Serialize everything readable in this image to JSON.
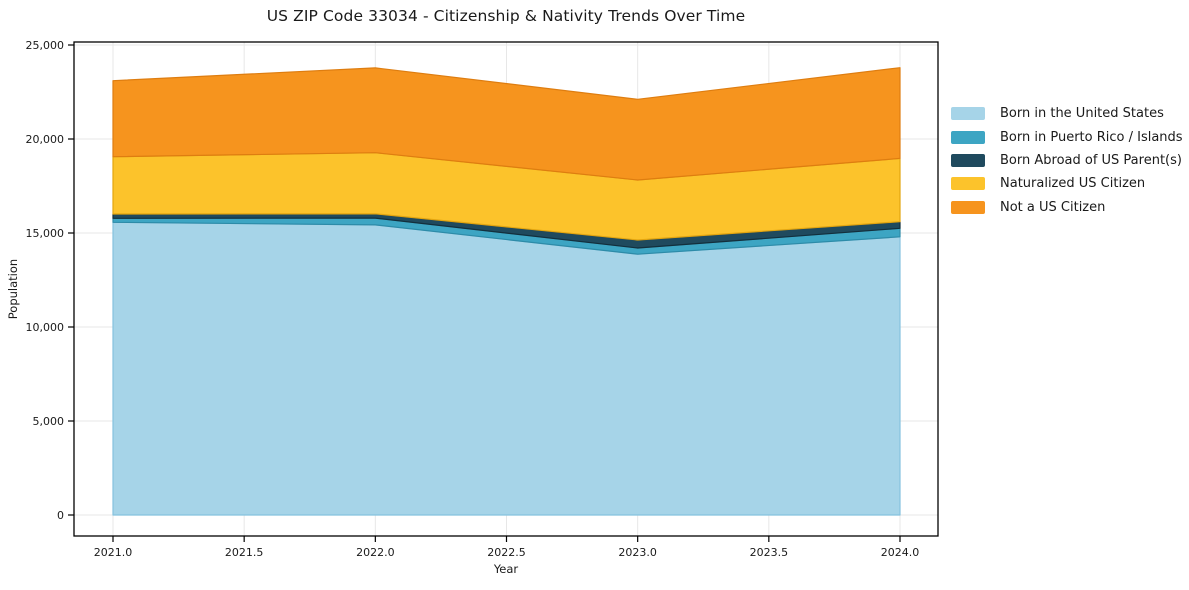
{
  "chart_data": {
    "type": "area",
    "stacked": true,
    "title": "US ZIP Code 33034 - Citizenship & Nativity Trends Over Time",
    "xlabel": "Year",
    "ylabel": "Population",
    "x": [
      2021,
      2022,
      2023,
      2024
    ],
    "series": [
      {
        "name": "Born in the United States",
        "color": "#A6D4E8",
        "edge_color": "#85C2DE",
        "values": [
          15570,
          15430,
          13870,
          14800
        ]
      },
      {
        "name": "Born in Puerto Rico / Islands",
        "color": "#3DA5C3",
        "edge_color": "#2D8BA8",
        "values": [
          210,
          360,
          330,
          450
        ]
      },
      {
        "name": "Born Abroad of US Parent(s)",
        "color": "#1F4A5E",
        "edge_color": "#132F3C",
        "values": [
          230,
          230,
          430,
          350
        ]
      },
      {
        "name": "Naturalized US Citizen",
        "color": "#FCC32B",
        "edge_color": "#E3A50F",
        "values": [
          3050,
          3250,
          3190,
          3370
        ]
      },
      {
        "name": "Not a US Citizen",
        "color": "#F6941E",
        "edge_color": "#DE7D10",
        "values": [
          4040,
          4510,
          4290,
          4820
        ]
      }
    ],
    "xticks": {
      "values": [
        2021.0,
        2021.5,
        2022.0,
        2022.5,
        2023.0,
        2023.5,
        2024.0
      ],
      "labels": [
        "2021.0",
        "2021.5",
        "2022.0",
        "2022.5",
        "2023.0",
        "2023.5",
        "2024.0"
      ]
    },
    "yticks": {
      "values": [
        0,
        5000,
        10000,
        15000,
        20000,
        25000
      ],
      "labels": [
        "0",
        "5,000",
        "10,000",
        "15,000",
        "20,000",
        "25,000"
      ]
    },
    "ylim": [
      0,
      25000
    ],
    "grid": true,
    "legend_position": "right-outside",
    "colors": {
      "grid": "#e7e7e7",
      "spine": "#000000",
      "text": "#1a1a1a",
      "background": "#ffffff"
    }
  }
}
